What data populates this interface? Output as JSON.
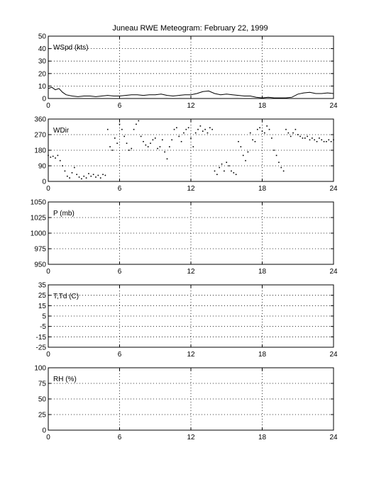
{
  "chart_data": {
    "title": "Juneau RWE Meteogram:  February 22, 1999",
    "type": "line",
    "x_ticks": [
      0,
      6,
      12,
      18,
      24
    ],
    "xlim": [
      0,
      24
    ],
    "grid": true,
    "panels": [
      {
        "label": "WSpd (kts)",
        "ylim": [
          0,
          50
        ],
        "yticks": [
          0,
          10,
          20,
          30,
          40,
          50
        ],
        "style": "line",
        "series": {
          "x": [
            0,
            0.3,
            0.6,
            0.9,
            1.2,
            1.5,
            2,
            2.5,
            3,
            3.5,
            4,
            4.5,
            5,
            5.5,
            6,
            6.5,
            7,
            7.5,
            8,
            8.5,
            9,
            9.5,
            10,
            10.5,
            11,
            11.5,
            12,
            12.5,
            13,
            13.5,
            14,
            14.5,
            15,
            15.5,
            16,
            16.5,
            17,
            17.5,
            18,
            18.5,
            19,
            19.5,
            20,
            20.5,
            21,
            21.5,
            22,
            22.5,
            23,
            23.5,
            24
          ],
          "y": [
            8,
            9,
            7,
            8,
            5,
            3,
            2,
            1.5,
            2,
            2,
            1.5,
            2,
            2.5,
            2,
            2,
            2.5,
            3,
            3,
            2.5,
            3,
            3,
            3.5,
            2.5,
            2,
            2.5,
            3,
            3,
            4,
            5.5,
            6,
            4,
            3,
            3.5,
            3,
            2.5,
            2,
            2,
            1,
            0.5,
            1,
            0.5,
            0.5,
            0.5,
            1,
            3.5,
            4.5,
            5,
            4,
            4,
            4.5,
            4
          ]
        }
      },
      {
        "label": "WDir",
        "ylim": [
          0,
          360
        ],
        "yticks": [
          0,
          90,
          180,
          270,
          360
        ],
        "style": "dots",
        "series": {
          "x": [
            0,
            0.2,
            0.4,
            0.6,
            0.8,
            1,
            1.2,
            1.4,
            1.6,
            1.8,
            2,
            2.2,
            2.4,
            2.6,
            2.8,
            3,
            3.2,
            3.4,
            3.6,
            3.8,
            4,
            4.2,
            4.4,
            4.6,
            4.8,
            5,
            5.2,
            5.4,
            5.6,
            5.8,
            6,
            6.2,
            6.4,
            6.6,
            6.8,
            7,
            7.2,
            7.4,
            7.6,
            7.8,
            8,
            8.2,
            8.4,
            8.6,
            8.8,
            9,
            9.2,
            9.4,
            9.6,
            9.8,
            10,
            10.2,
            10.4,
            10.6,
            10.8,
            11,
            11.2,
            11.4,
            11.6,
            11.8,
            12,
            12.2,
            12.4,
            12.6,
            12.8,
            13,
            13.2,
            13.4,
            13.6,
            13.8,
            14,
            14.2,
            14.4,
            14.6,
            14.8,
            15,
            15.2,
            15.4,
            15.6,
            15.8,
            16,
            16.2,
            16.4,
            16.6,
            16.8,
            17,
            17.2,
            17.4,
            17.6,
            17.8,
            18,
            18.2,
            18.4,
            18.6,
            18.8,
            19,
            19.2,
            19.4,
            19.6,
            19.8,
            20,
            20.2,
            20.4,
            20.6,
            20.8,
            21,
            21.2,
            21.4,
            21.6,
            21.8,
            22,
            22.2,
            22.4,
            22.6,
            22.8,
            23,
            23.2,
            23.4,
            23.6,
            23.8,
            24
          ],
          "y": [
            150,
            140,
            145,
            135,
            150,
            120,
            90,
            60,
            30,
            20,
            50,
            80,
            40,
            25,
            15,
            30,
            20,
            45,
            30,
            40,
            25,
            35,
            20,
            40,
            35,
            300,
            200,
            180,
            250,
            220,
            330,
            300,
            260,
            220,
            180,
            190,
            300,
            330,
            350,
            260,
            230,
            210,
            200,
            220,
            240,
            250,
            190,
            200,
            240,
            170,
            130,
            200,
            240,
            300,
            310,
            260,
            230,
            280,
            300,
            310,
            250,
            200,
            280,
            300,
            320,
            290,
            300,
            280,
            310,
            300,
            60,
            40,
            80,
            100,
            60,
            110,
            90,
            60,
            50,
            40,
            230,
            200,
            150,
            120,
            170,
            280,
            240,
            230,
            300,
            310,
            290,
            280,
            320,
            300,
            250,
            180,
            150,
            110,
            80,
            60,
            300,
            280,
            260,
            280,
            300,
            270,
            260,
            250,
            250,
            260,
            240,
            250,
            240,
            230,
            250,
            240,
            230,
            230,
            240,
            230,
            240
          ]
        }
      },
      {
        "label": "P (mb)",
        "ylim": [
          950,
          1050
        ],
        "yticks": [
          950,
          975,
          1000,
          1025,
          1050
        ],
        "style": "none"
      },
      {
        "label": "T,Td (C)",
        "ylim": [
          -25,
          35
        ],
        "yticks": [
          -25,
          -15,
          -5,
          5,
          15,
          25,
          35
        ],
        "style": "none"
      },
      {
        "label": "RH (%)",
        "ylim": [
          0,
          100
        ],
        "yticks": [
          0,
          25,
          50,
          75,
          100
        ],
        "style": "none"
      }
    ]
  }
}
